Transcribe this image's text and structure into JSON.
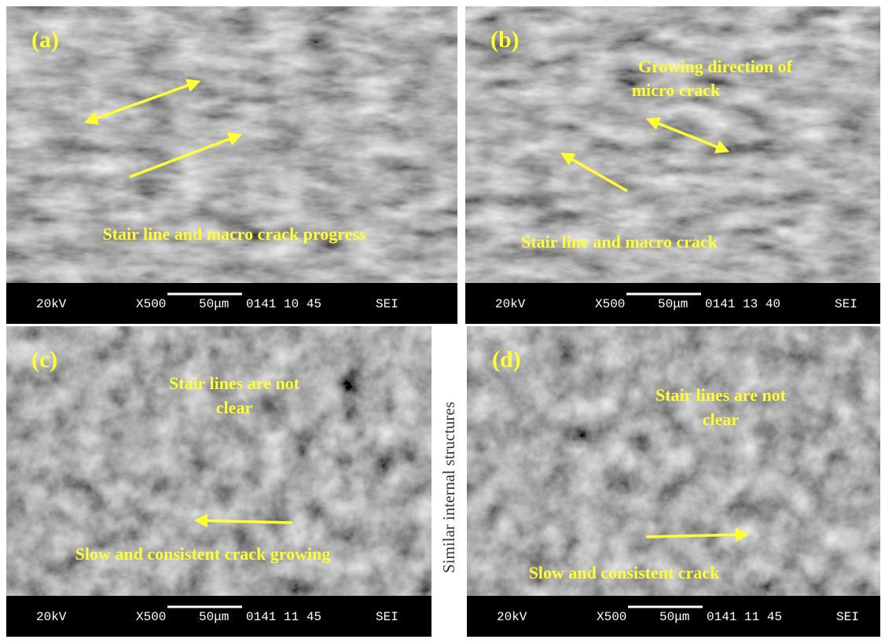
{
  "figure": {
    "side_label": "Similar internal structures",
    "panels": [
      {
        "label": "(a)",
        "annotations": [
          "Stair line and macro crack progress"
        ],
        "info": {
          "voltage": "20kV",
          "magnification": "X500",
          "scale": "50μm",
          "code": "0141 10 45",
          "mode": "SEI"
        }
      },
      {
        "label": "(b)",
        "annotations": [
          "Growing direction of",
          "micro crack",
          "Stair line and macro crack"
        ],
        "info": {
          "voltage": "20kV",
          "magnification": "X500",
          "scale": "50μm",
          "code": "0141 13 40",
          "mode": "SEI"
        }
      },
      {
        "label": "(c)",
        "annotations": [
          "Stair lines are not",
          "clear",
          "Slow and consistent crack growing"
        ],
        "info": {
          "voltage": "20kV",
          "magnification": "X500",
          "scale": "50μm",
          "code": "0141 11 45",
          "mode": "SEI"
        }
      },
      {
        "label": "(d)",
        "annotations": [
          "Stair lines are not",
          "clear",
          "Slow and consistent crack"
        ],
        "info": {
          "voltage": "20kV",
          "magnification": "X500",
          "scale": "50μm",
          "code": "0141 11 45",
          "mode": "SEI"
        }
      }
    ]
  }
}
